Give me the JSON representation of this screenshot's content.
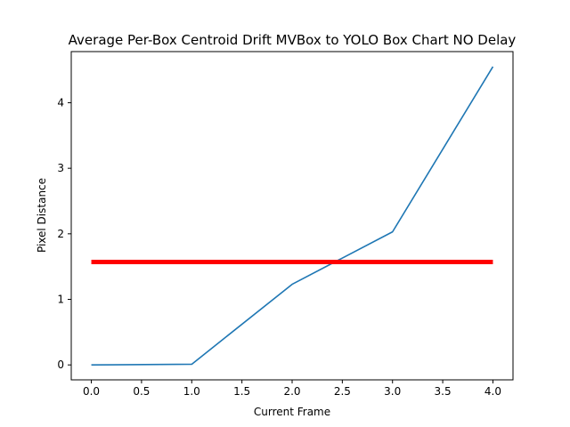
{
  "chart_data": {
    "type": "line",
    "title": "Average Per-Box Centroid Drift MVBox to YOLO Box Chart NO Delay",
    "xlabel": "Current Frame",
    "ylabel": "Pixel Distance",
    "xlim": [
      -0.2,
      4.2
    ],
    "ylim": [
      -0.228,
      4.78
    ],
    "xticks": [
      0.0,
      0.5,
      1.0,
      1.5,
      2.0,
      2.5,
      3.0,
      3.5,
      4.0
    ],
    "xtick_labels": [
      "0.0",
      "0.5",
      "1.0",
      "1.5",
      "2.0",
      "2.5",
      "3.0",
      "3.5",
      "4.0"
    ],
    "yticks": [
      0,
      1,
      2,
      3,
      4
    ],
    "ytick_labels": [
      "0",
      "1",
      "2",
      "3",
      "4"
    ],
    "grid": false,
    "series": [
      {
        "color": "#1f77b4",
        "x": [
          0,
          1,
          2,
          3,
          4
        ],
        "y": [
          0.0,
          0.01,
          1.23,
          2.03,
          4.55
        ]
      },
      {
        "color": "#ff0000",
        "x": [
          0,
          4
        ],
        "y": [
          1.57,
          1.57
        ]
      }
    ]
  }
}
